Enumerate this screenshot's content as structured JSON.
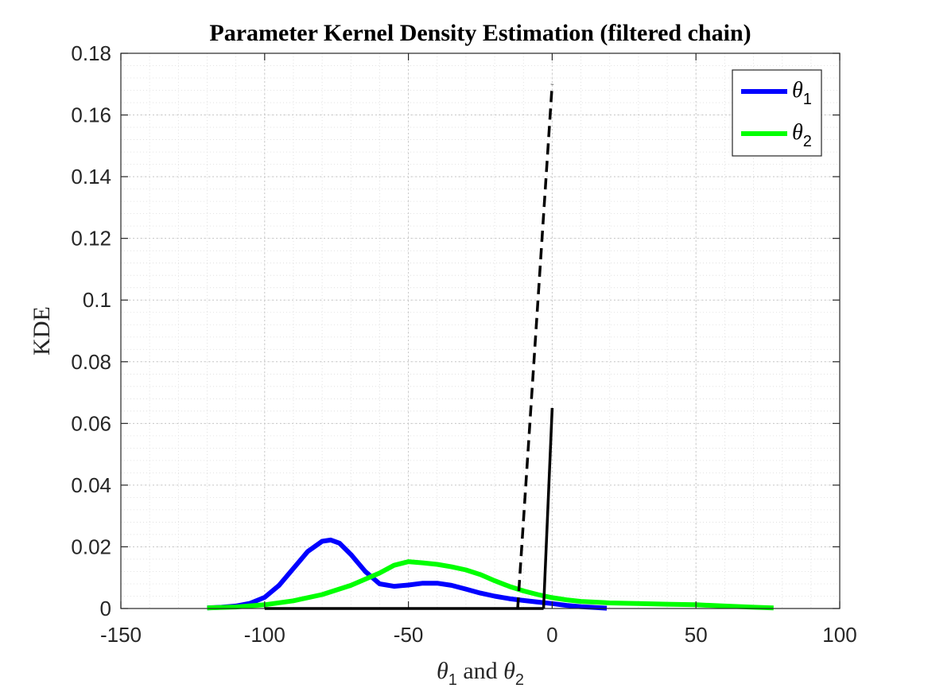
{
  "chart_data": {
    "type": "line",
    "title": "Parameter Kernel Density Estimation (filtered chain)",
    "xlabel_parts": [
      "θ",
      "1",
      " and ",
      "θ",
      "2"
    ],
    "ylabel": "KDE",
    "xlim": [
      -150,
      100
    ],
    "ylim": [
      0,
      0.18
    ],
    "xticks": [
      -150,
      -100,
      -50,
      0,
      50,
      100
    ],
    "xtick_labels": [
      "-150",
      "-100",
      "-50",
      "0",
      "50",
      "100"
    ],
    "yticks": [
      0,
      0.02,
      0.04,
      0.06,
      0.08,
      0.1,
      0.12,
      0.14,
      0.16,
      0.18
    ],
    "ytick_labels": [
      "0",
      "0.02",
      "0.04",
      "0.06",
      "0.08",
      "0.1",
      "0.12",
      "0.14",
      "0.16",
      "0.18"
    ],
    "grid": true,
    "minor_grid": true,
    "legend_position": "top-right",
    "series": [
      {
        "name": "θ1",
        "name_symbol": "θ",
        "name_sub": "1",
        "color": "#0000ff",
        "x": [
          -120,
          -115,
          -110,
          -105,
          -100,
          -95,
          -90,
          -85,
          -80,
          -77,
          -74,
          -70,
          -65,
          -60,
          -55,
          -50,
          -45,
          -40,
          -35,
          -30,
          -25,
          -20,
          -15,
          -10,
          -5,
          0,
          5,
          10,
          15,
          19
        ],
        "y": [
          0.0002,
          0.0004,
          0.0008,
          0.0017,
          0.0036,
          0.0075,
          0.013,
          0.0185,
          0.0218,
          0.0222,
          0.0212,
          0.0175,
          0.012,
          0.008,
          0.0072,
          0.0076,
          0.0082,
          0.0082,
          0.0075,
          0.0063,
          0.005,
          0.004,
          0.0032,
          0.0026,
          0.0021,
          0.0016,
          0.001,
          0.0006,
          0.0003,
          0.0001
        ]
      },
      {
        "name": "θ2",
        "name_symbol": "θ",
        "name_sub": "2",
        "color": "#00ff00",
        "x": [
          -120,
          -110,
          -100,
          -90,
          -80,
          -70,
          -60,
          -55,
          -50,
          -45,
          -40,
          -35,
          -30,
          -25,
          -20,
          -15,
          -10,
          -5,
          0,
          5,
          10,
          20,
          30,
          40,
          50,
          60,
          70,
          77
        ],
        "y": [
          0.0002,
          0.0005,
          0.0012,
          0.0025,
          0.0045,
          0.0075,
          0.0115,
          0.014,
          0.0152,
          0.0148,
          0.0143,
          0.0135,
          0.0125,
          0.011,
          0.009,
          0.0072,
          0.0057,
          0.0045,
          0.0035,
          0.0028,
          0.0023,
          0.0018,
          0.0016,
          0.0014,
          0.0012,
          0.0008,
          0.0004,
          0.0002
        ]
      }
    ],
    "unlabeled_lines": [
      {
        "color": "#000000",
        "style": "dashed",
        "x": [
          -12,
          0
        ],
        "y": [
          0,
          0.17
        ]
      },
      {
        "color": "#000000",
        "style": "solid",
        "x": [
          -3,
          0
        ],
        "y": [
          0,
          0.065
        ]
      },
      {
        "color": "#000000",
        "style": "solid",
        "x": [
          -100,
          -3
        ],
        "y": [
          0,
          0
        ]
      }
    ]
  }
}
